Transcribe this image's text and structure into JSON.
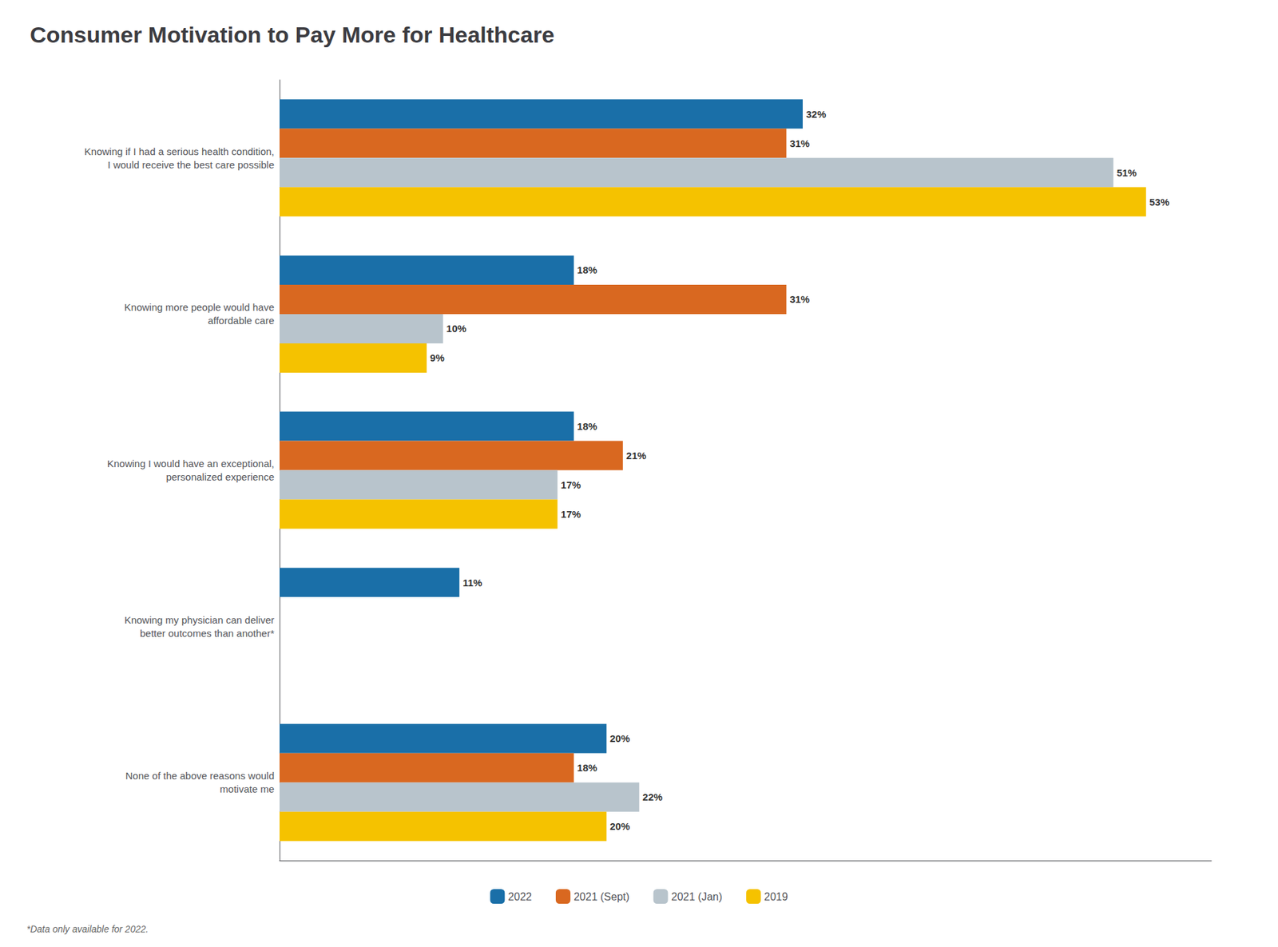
{
  "chart_data": {
    "type": "bar",
    "orientation": "horizontal",
    "title": "Consumer Motivation to Pay More for Healthcare",
    "annotations": [
      "*Data only available for 2022."
    ],
    "categories": [
      "Knowing if I had a serious health condition,\nI would receive the best care possible",
      "Knowing more people would have\naffordable care",
      "Knowing I would have an exceptional,\npersonalized experience",
      "Knowing my physician can deliver\nbetter outcomes than another*",
      "None of the above reasons would\nmotivate me"
    ],
    "series": [
      {
        "name": "2022",
        "color": "#1a6fa8",
        "values": [
          32,
          18,
          18,
          11,
          20
        ],
        "value_labels": [
          "32%",
          "18%",
          "18%",
          "11%",
          "20%"
        ]
      },
      {
        "name": "2021 (Sept)",
        "color": "#d96820",
        "values": [
          31,
          31,
          21,
          null,
          18
        ],
        "value_labels": [
          "31%",
          "31%",
          "21%",
          null,
          "18%"
        ]
      },
      {
        "name": "2021 (Jan)",
        "color": "#b8c4cc",
        "values": [
          51,
          10,
          17,
          null,
          22
        ],
        "value_labels": [
          "51%",
          "10%",
          "17%",
          null,
          "22%"
        ]
      },
      {
        "name": "2019",
        "color": "#f5c200",
        "values": [
          53,
          9,
          17,
          null,
          20
        ],
        "value_labels": [
          "53%",
          "9%",
          "17%",
          null,
          "20%"
        ]
      }
    ],
    "xlim": [
      0,
      57
    ],
    "tick_labels": "y",
    "grid": false,
    "legend": "bottom",
    "data_labels": true
  }
}
